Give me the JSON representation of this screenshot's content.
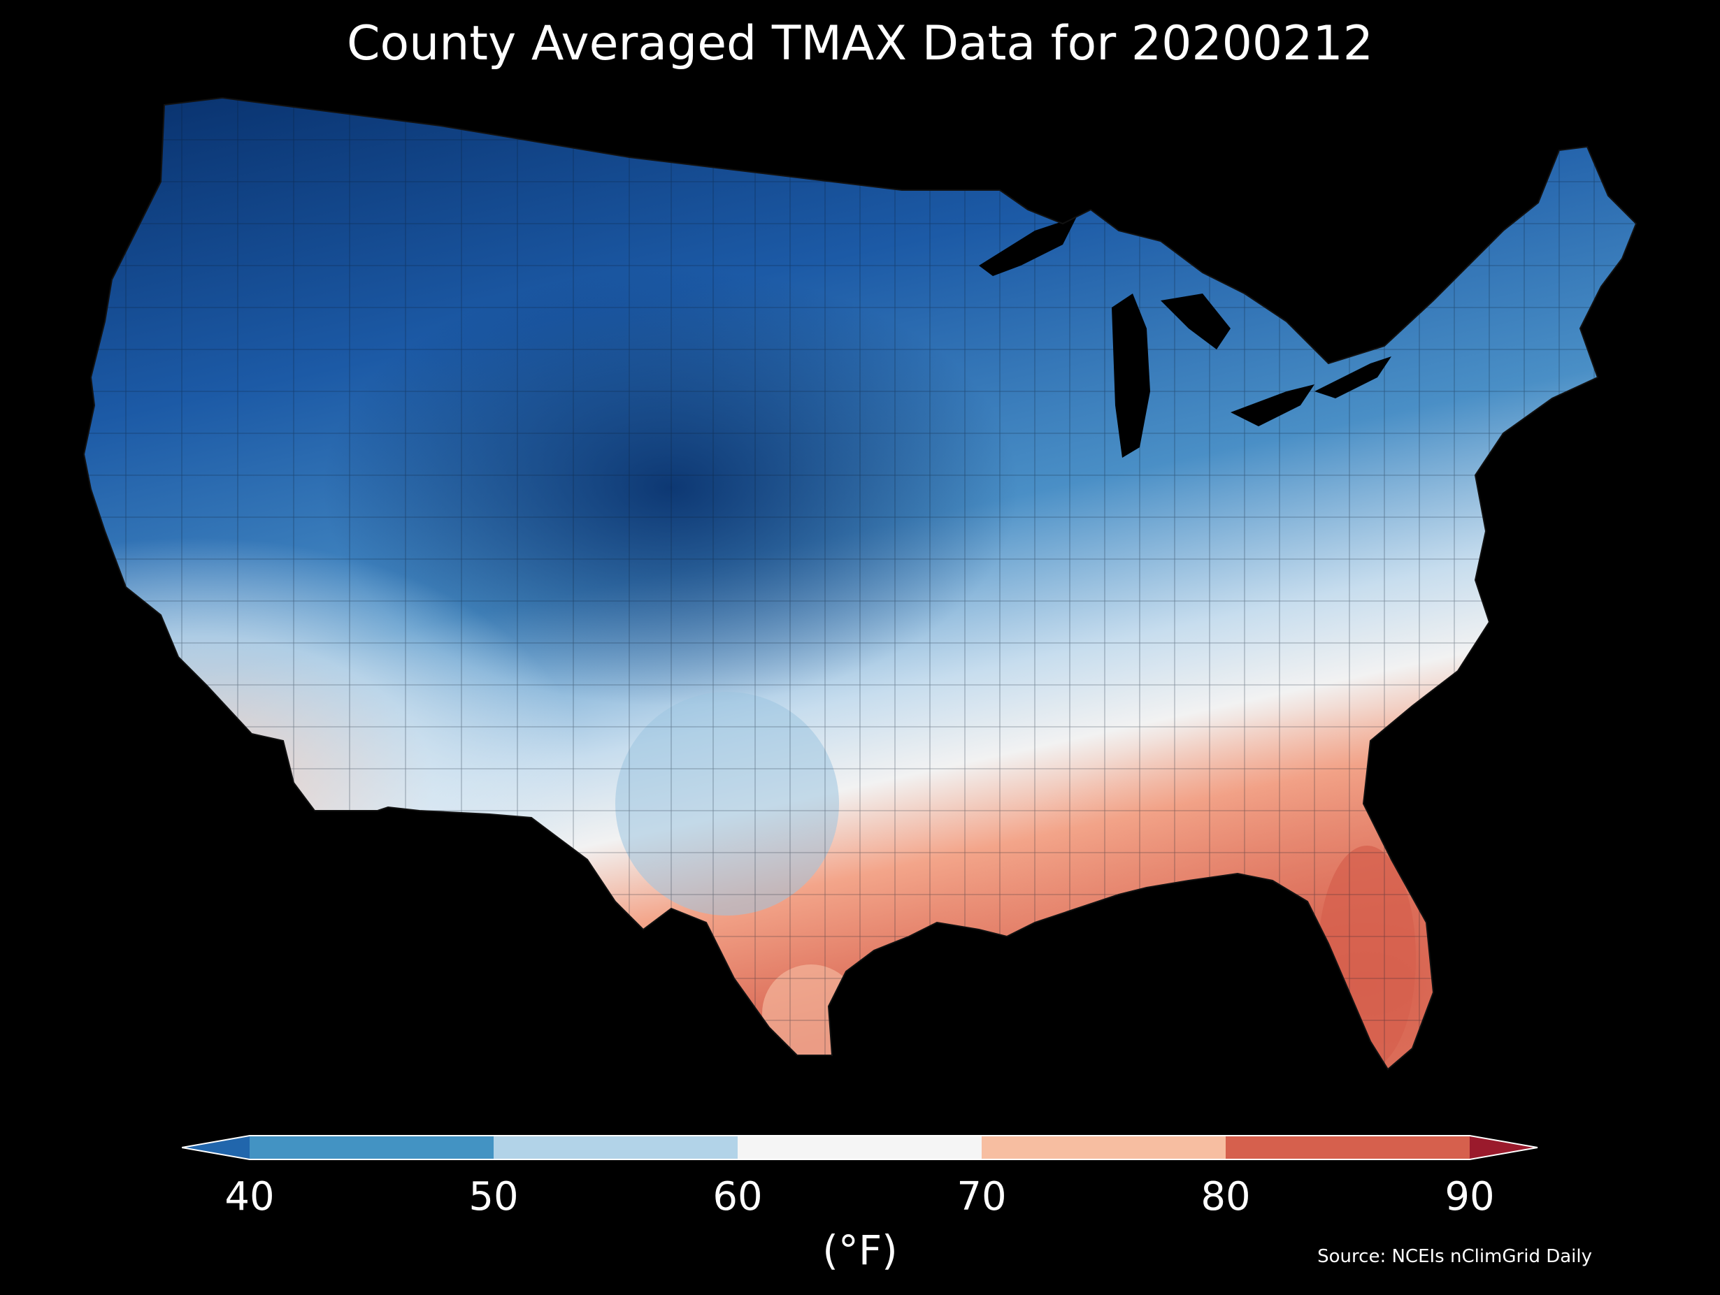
{
  "title": "County Averaged TMAX Data for 20200212",
  "map": {
    "region": "Contiguous United States",
    "variable": "TMAX",
    "date": "20200212",
    "background_color": "#000000"
  },
  "colorbar": {
    "unit": "(°F)",
    "extend": "both",
    "ticks": [
      "40",
      "50",
      "60",
      "70",
      "80",
      "90"
    ],
    "bins": [
      {
        "range": [
          null,
          40
        ],
        "color": "#2166ac"
      },
      {
        "range": [
          40,
          50
        ],
        "color": "#4393c3"
      },
      {
        "range": [
          50,
          60
        ],
        "color": "#b2d3e8"
      },
      {
        "range": [
          60,
          70
        ],
        "color": "#f5f5f5"
      },
      {
        "range": [
          70,
          80
        ],
        "color": "#f7bea1"
      },
      {
        "range": [
          80,
          90
        ],
        "color": "#d6604d"
      },
      {
        "range": [
          90,
          null
        ],
        "color": "#9a1a2c"
      }
    ]
  },
  "source": "Source: NCEIs nClimGrid Daily"
}
